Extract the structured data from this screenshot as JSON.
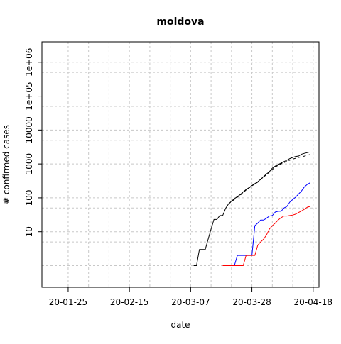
{
  "chart_data": {
    "type": "line",
    "title": "moldova",
    "xlabel": "date",
    "ylabel": "# confirmed cases",
    "x_scale": "date",
    "y_scale": "log",
    "xlim": [
      "2020-01-16",
      "2020-04-20"
    ],
    "ylim": [
      0.23,
      4000000
    ],
    "x_ticks": [
      {
        "date": "2020-01-25",
        "label": "20-01-25"
      },
      {
        "date": "2020-02-15",
        "label": "20-02-15"
      },
      {
        "date": "2020-03-07",
        "label": "20-03-07"
      },
      {
        "date": "2020-03-28",
        "label": "20-03-28"
      },
      {
        "date": "2020-04-18",
        "label": "20-04-18"
      }
    ],
    "x_minor_grid": [
      "2020-02-01",
      "2020-02-08",
      "2020-02-22",
      "2020-02-29",
      "2020-03-14",
      "2020-03-21",
      "2020-04-04",
      "2020-04-11"
    ],
    "y_ticks": [
      {
        "value": 10,
        "label": "10"
      },
      {
        "value": 100,
        "label": "100"
      },
      {
        "value": 1000,
        "label": "1000"
      },
      {
        "value": 10000,
        "label": "10000"
      },
      {
        "value": 100000,
        "label": "1e+05"
      },
      {
        "value": 1000000,
        "label": "1e+06"
      }
    ],
    "y_minor_grid": [
      1,
      5,
      50,
      500,
      5000,
      50000,
      500000
    ],
    "grid": true,
    "series": [
      {
        "color": "#000000",
        "dash": "solid",
        "points": [
          [
            "2020-03-08",
            1
          ],
          [
            "2020-03-09",
            1
          ],
          [
            "2020-03-10",
            3
          ],
          [
            "2020-03-11",
            3
          ],
          [
            "2020-03-12",
            3
          ],
          [
            "2020-03-13",
            6
          ],
          [
            "2020-03-14",
            12
          ],
          [
            "2020-03-15",
            23
          ],
          [
            "2020-03-16",
            23
          ],
          [
            "2020-03-17",
            30
          ],
          [
            "2020-03-18",
            30
          ],
          [
            "2020-03-19",
            49
          ],
          [
            "2020-03-20",
            66
          ],
          [
            "2020-03-21",
            80
          ],
          [
            "2020-03-22",
            94
          ],
          [
            "2020-03-23",
            109
          ],
          [
            "2020-03-24",
            125
          ],
          [
            "2020-03-25",
            149
          ],
          [
            "2020-03-26",
            177
          ],
          [
            "2020-03-27",
            199
          ],
          [
            "2020-03-28",
            231
          ],
          [
            "2020-03-29",
            263
          ],
          [
            "2020-03-30",
            298
          ],
          [
            "2020-03-31",
            353
          ],
          [
            "2020-04-01",
            423
          ],
          [
            "2020-04-02",
            505
          ],
          [
            "2020-04-03",
            591
          ],
          [
            "2020-04-04",
            752
          ],
          [
            "2020-04-05",
            864
          ],
          [
            "2020-04-06",
            965
          ],
          [
            "2020-04-07",
            1056
          ],
          [
            "2020-04-08",
            1174
          ],
          [
            "2020-04-09",
            1289
          ],
          [
            "2020-04-10",
            1438
          ],
          [
            "2020-04-11",
            1560
          ],
          [
            "2020-04-12",
            1662
          ],
          [
            "2020-04-13",
            1712
          ],
          [
            "2020-04-14",
            1934
          ],
          [
            "2020-04-15",
            2049
          ],
          [
            "2020-04-16",
            2154
          ],
          [
            "2020-04-17",
            2264
          ]
        ]
      },
      {
        "color": "#000000",
        "dash": "dashed",
        "points": [
          [
            "2020-03-20",
            66
          ],
          [
            "2020-03-22",
            90
          ],
          [
            "2020-03-24",
            120
          ],
          [
            "2020-03-26",
            170
          ],
          [
            "2020-03-28",
            225
          ],
          [
            "2020-03-30",
            290
          ],
          [
            "2020-04-01",
            410
          ],
          [
            "2020-04-03",
            570
          ],
          [
            "2020-04-05",
            820
          ],
          [
            "2020-04-07",
            1000
          ],
          [
            "2020-04-09",
            1200
          ],
          [
            "2020-04-11",
            1400
          ],
          [
            "2020-04-13",
            1550
          ],
          [
            "2020-04-15",
            1700
          ],
          [
            "2020-04-17",
            1900
          ]
        ]
      },
      {
        "color": "#0000ff",
        "dash": "solid",
        "points": [
          [
            "2020-03-18",
            1
          ],
          [
            "2020-03-19",
            1
          ],
          [
            "2020-03-20",
            1
          ],
          [
            "2020-03-21",
            1
          ],
          [
            "2020-03-22",
            1
          ],
          [
            "2020-03-23",
            2
          ],
          [
            "2020-03-24",
            2
          ],
          [
            "2020-03-25",
            2
          ],
          [
            "2020-03-26",
            2
          ],
          [
            "2020-03-27",
            2
          ],
          [
            "2020-03-28",
            2
          ],
          [
            "2020-03-29",
            15
          ],
          [
            "2020-03-30",
            18
          ],
          [
            "2020-03-31",
            22
          ],
          [
            "2020-04-01",
            22
          ],
          [
            "2020-04-02",
            25
          ],
          [
            "2020-04-03",
            29
          ],
          [
            "2020-04-04",
            30
          ],
          [
            "2020-04-05",
            38
          ],
          [
            "2020-04-06",
            40
          ],
          [
            "2020-04-07",
            40
          ],
          [
            "2020-04-08",
            50
          ],
          [
            "2020-04-09",
            56
          ],
          [
            "2020-04-10",
            75
          ],
          [
            "2020-04-11",
            90
          ],
          [
            "2020-04-12",
            105
          ],
          [
            "2020-04-13",
            130
          ],
          [
            "2020-04-14",
            160
          ],
          [
            "2020-04-15",
            210
          ],
          [
            "2020-04-16",
            250
          ],
          [
            "2020-04-17",
            280
          ]
        ]
      },
      {
        "color": "#ff0000",
        "dash": "solid",
        "points": [
          [
            "2020-03-18",
            1
          ],
          [
            "2020-03-19",
            1
          ],
          [
            "2020-03-20",
            1
          ],
          [
            "2020-03-21",
            1
          ],
          [
            "2020-03-22",
            1
          ],
          [
            "2020-03-23",
            1
          ],
          [
            "2020-03-24",
            1
          ],
          [
            "2020-03-25",
            1
          ],
          [
            "2020-03-26",
            2
          ],
          [
            "2020-03-27",
            2
          ],
          [
            "2020-03-28",
            2
          ],
          [
            "2020-03-29",
            2
          ],
          [
            "2020-03-30",
            4
          ],
          [
            "2020-03-31",
            5
          ],
          [
            "2020-04-01",
            6
          ],
          [
            "2020-04-02",
            8
          ],
          [
            "2020-04-03",
            12
          ],
          [
            "2020-04-04",
            15
          ],
          [
            "2020-04-05",
            18
          ],
          [
            "2020-04-06",
            22
          ],
          [
            "2020-04-07",
            26
          ],
          [
            "2020-04-08",
            29
          ],
          [
            "2020-04-09",
            29
          ],
          [
            "2020-04-10",
            30
          ],
          [
            "2020-04-11",
            31
          ],
          [
            "2020-04-12",
            33
          ],
          [
            "2020-04-13",
            37
          ],
          [
            "2020-04-14",
            41
          ],
          [
            "2020-04-15",
            46
          ],
          [
            "2020-04-16",
            53
          ],
          [
            "2020-04-17",
            56
          ]
        ]
      }
    ]
  }
}
